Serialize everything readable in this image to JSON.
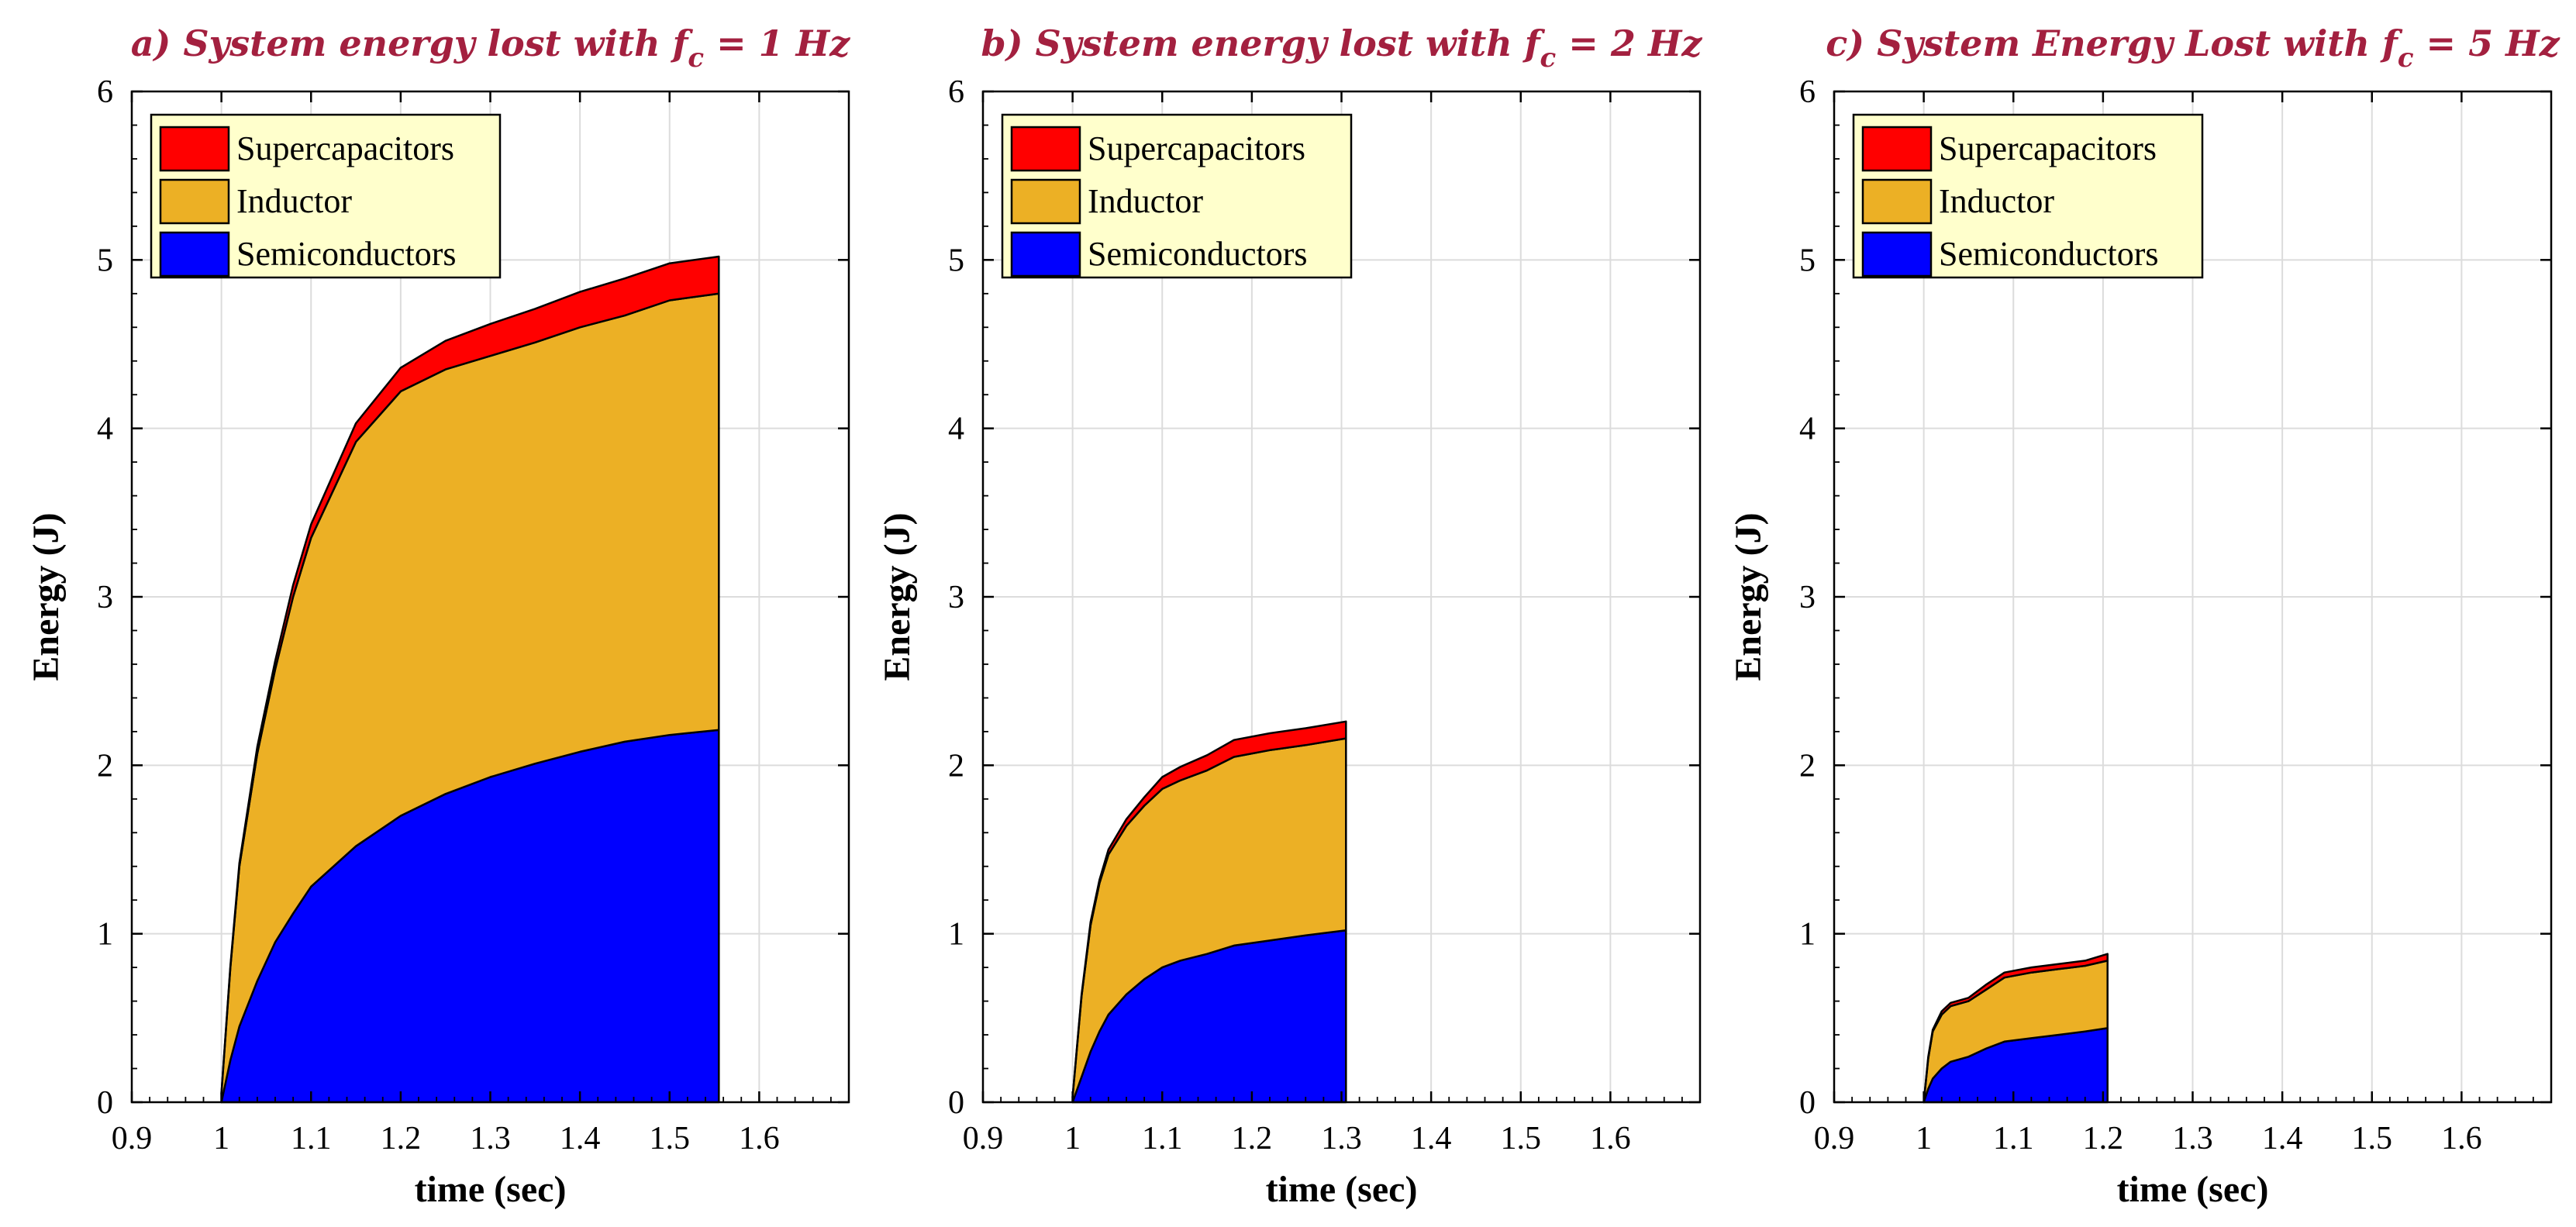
{
  "figure": {
    "colors": {
      "supercapacitors": "#ff0000",
      "inductor": "#ecb025",
      "semiconductors": "#0000ff",
      "legend_bg": "#ffffcc",
      "title": "#a3203f",
      "grid": "#dcdcdc"
    }
  },
  "chart_data": [
    {
      "type": "area",
      "stacked": true,
      "title_main": "a) System energy lost with f",
      "title_sub": "c",
      "title_tail": " =  1 Hz",
      "xlabel": "time (sec)",
      "ylabel": "Energy (J)",
      "xlim": [
        0.9,
        1.7
      ],
      "ylim": [
        0,
        6
      ],
      "xticks": [
        "0.9",
        "1",
        "1.1",
        "1.2",
        "1.3",
        "1.4",
        "1.5",
        "1.6"
      ],
      "yticks": [
        "0",
        "1",
        "2",
        "3",
        "4",
        "5",
        "6"
      ],
      "grid": true,
      "legend_position": "top-left",
      "legend": [
        "Supercapacitors",
        "Inductor",
        "Semiconductors"
      ],
      "x": [
        1.0,
        1.01,
        1.02,
        1.04,
        1.06,
        1.08,
        1.1,
        1.15,
        1.2,
        1.25,
        1.3,
        1.35,
        1.4,
        1.45,
        1.5,
        1.555
      ],
      "series": [
        {
          "name": "Semiconductors",
          "values": [
            0.0,
            0.25,
            0.45,
            0.72,
            0.95,
            1.12,
            1.28,
            1.52,
            1.7,
            1.83,
            1.93,
            2.01,
            2.08,
            2.14,
            2.18,
            2.21
          ]
        },
        {
          "name": "Inductor",
          "values": [
            0.05,
            0.55,
            0.95,
            1.35,
            1.62,
            1.88,
            2.07,
            2.4,
            2.52,
            2.52,
            2.5,
            2.5,
            2.52,
            2.53,
            2.58,
            2.59
          ]
        },
        {
          "name": "Supercapacitors",
          "values": [
            0.0,
            0.01,
            0.02,
            0.04,
            0.05,
            0.07,
            0.08,
            0.11,
            0.14,
            0.17,
            0.19,
            0.2,
            0.21,
            0.22,
            0.22,
            0.22
          ]
        }
      ]
    },
    {
      "type": "area",
      "stacked": true,
      "title_main": "b) System energy lost with f",
      "title_sub": "c",
      "title_tail": " =  2 Hz",
      "xlabel": "time (sec)",
      "ylabel": "Energy (J)",
      "xlim": [
        0.9,
        1.7
      ],
      "ylim": [
        0,
        6
      ],
      "xticks": [
        "0.9",
        "1",
        "1.1",
        "1.2",
        "1.3",
        "1.4",
        "1.5",
        "1.6"
      ],
      "yticks": [
        "0",
        "1",
        "2",
        "3",
        "4",
        "5",
        "6"
      ],
      "grid": true,
      "legend_position": "top-left",
      "legend": [
        "Supercapacitors",
        "Inductor",
        "Semiconductors"
      ],
      "x": [
        1.0,
        1.01,
        1.02,
        1.03,
        1.04,
        1.06,
        1.08,
        1.1,
        1.12,
        1.15,
        1.18,
        1.22,
        1.26,
        1.305
      ],
      "series": [
        {
          "name": "Semiconductors",
          "values": [
            0.0,
            0.15,
            0.3,
            0.42,
            0.52,
            0.64,
            0.73,
            0.8,
            0.84,
            0.88,
            0.93,
            0.96,
            0.99,
            1.02
          ]
        },
        {
          "name": "Inductor",
          "values": [
            0.03,
            0.48,
            0.75,
            0.88,
            0.95,
            1.0,
            1.03,
            1.06,
            1.07,
            1.09,
            1.12,
            1.13,
            1.13,
            1.14
          ]
        },
        {
          "name": "Supercapacitors",
          "values": [
            0.0,
            0.01,
            0.02,
            0.02,
            0.03,
            0.04,
            0.05,
            0.07,
            0.08,
            0.09,
            0.1,
            0.1,
            0.1,
            0.1
          ]
        }
      ]
    },
    {
      "type": "area",
      "stacked": true,
      "title_main": "c) System Energy Lost with f",
      "title_sub": "c",
      "title_tail": " = 5 Hz",
      "xlabel": "time (sec)",
      "ylabel": "Energy (J)",
      "xlim": [
        0.9,
        1.7
      ],
      "ylim": [
        0,
        6
      ],
      "xticks": [
        "0.9",
        "1",
        "1.1",
        "1.2",
        "1.3",
        "1.4",
        "1.5",
        "1.6"
      ],
      "yticks": [
        "0",
        "1",
        "2",
        "3",
        "4",
        "5",
        "6"
      ],
      "grid": true,
      "legend_position": "top-left",
      "legend": [
        "Supercapacitors",
        "Inductor",
        "Semiconductors"
      ],
      "x": [
        1.0,
        1.005,
        1.01,
        1.02,
        1.03,
        1.05,
        1.07,
        1.09,
        1.12,
        1.15,
        1.18,
        1.205
      ],
      "series": [
        {
          "name": "Semiconductors",
          "values": [
            0.0,
            0.08,
            0.14,
            0.2,
            0.24,
            0.27,
            0.32,
            0.36,
            0.38,
            0.4,
            0.42,
            0.44
          ]
        },
        {
          "name": "Inductor",
          "values": [
            0.0,
            0.18,
            0.28,
            0.32,
            0.33,
            0.33,
            0.35,
            0.38,
            0.39,
            0.39,
            0.39,
            0.4
          ]
        },
        {
          "name": "Supercapacitors",
          "values": [
            0.0,
            0.01,
            0.01,
            0.02,
            0.02,
            0.02,
            0.03,
            0.03,
            0.03,
            0.03,
            0.03,
            0.04
          ]
        }
      ]
    }
  ]
}
